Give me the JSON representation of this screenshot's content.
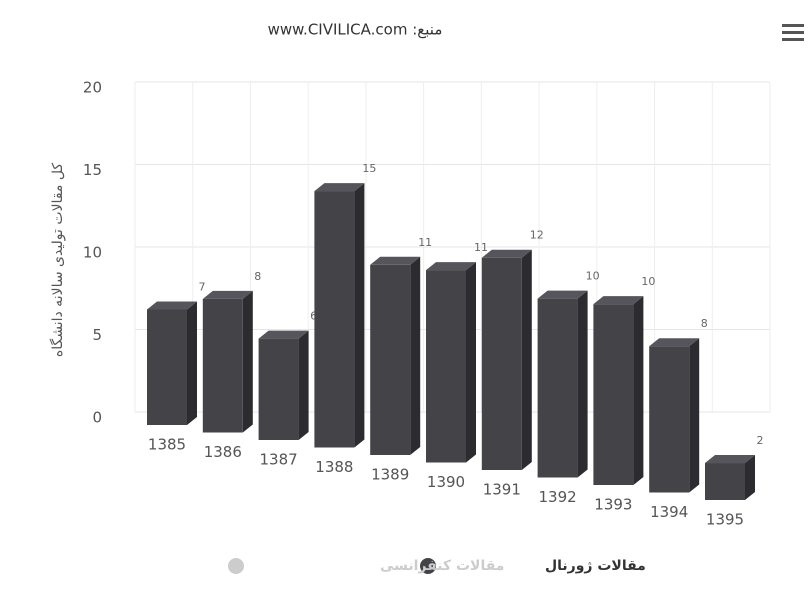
{
  "chart_data": {
    "type": "bar3d",
    "title": "منبع: www.CIVILICA.com",
    "y_label": "کل مقالات تولیدی سالانه دانشگاه",
    "categories": [
      "1385",
      "1386",
      "1387",
      "1388",
      "1389",
      "1390",
      "1391",
      "1392",
      "1393",
      "1394",
      "1395"
    ],
    "series": [
      {
        "name": "مقالات ژورنال",
        "color": "#434348",
        "values": [
          7,
          8,
          6,
          15,
          11,
          11,
          12,
          10,
          10,
          8,
          2
        ]
      },
      {
        "name": "مقالات کنفرانسی",
        "color": "#cccccc",
        "visible": false
      }
    ],
    "ylim": [
      0,
      20
    ],
    "yticks": [
      0,
      5,
      10,
      15,
      20
    ],
    "grid": true
  }
}
